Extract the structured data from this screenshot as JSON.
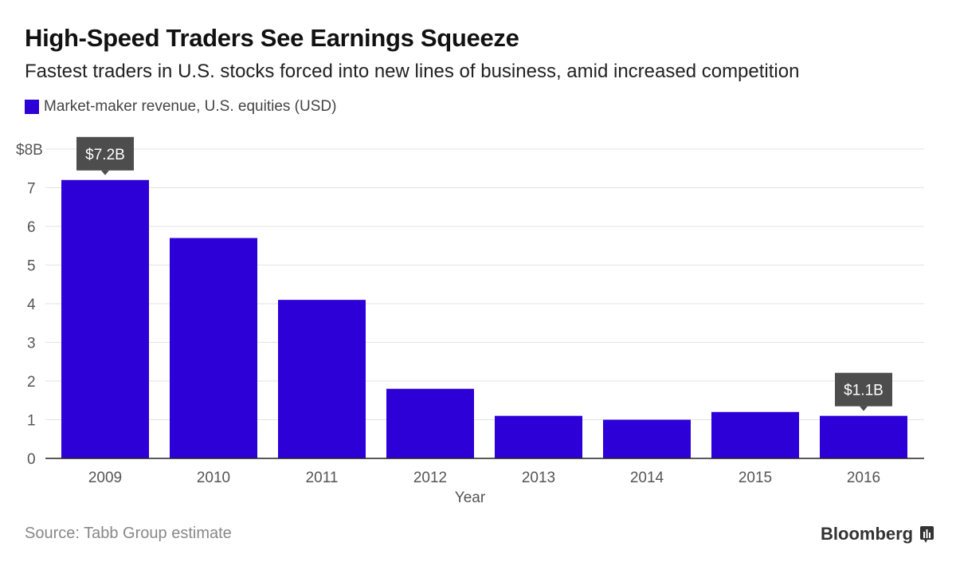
{
  "chart_data": {
    "type": "bar",
    "title": "High-Speed Traders See Earnings Squeeze",
    "subtitle": "Fastest traders in U.S. stocks forced into new lines of business, amid increased competition",
    "legend": "Market-maker revenue, U.S. equities (USD)",
    "xlabel": "Year",
    "ylabel": "",
    "categories": [
      "2009",
      "2010",
      "2011",
      "2012",
      "2013",
      "2014",
      "2015",
      "2016"
    ],
    "values": [
      7.2,
      5.7,
      4.1,
      1.8,
      1.1,
      1.0,
      1.2,
      1.1
    ],
    "ylim": [
      0,
      8
    ],
    "yticks": [
      "0",
      "1",
      "2",
      "3",
      "4",
      "5",
      "6",
      "7",
      "$8B"
    ],
    "annotations": [
      {
        "category": "2009",
        "label": "$7.2B"
      },
      {
        "category": "2016",
        "label": "$1.1B"
      }
    ],
    "grid": true,
    "color": "#2c00d6",
    "source": "Source: Tabb Group estimate"
  },
  "brand": "Bloomberg"
}
